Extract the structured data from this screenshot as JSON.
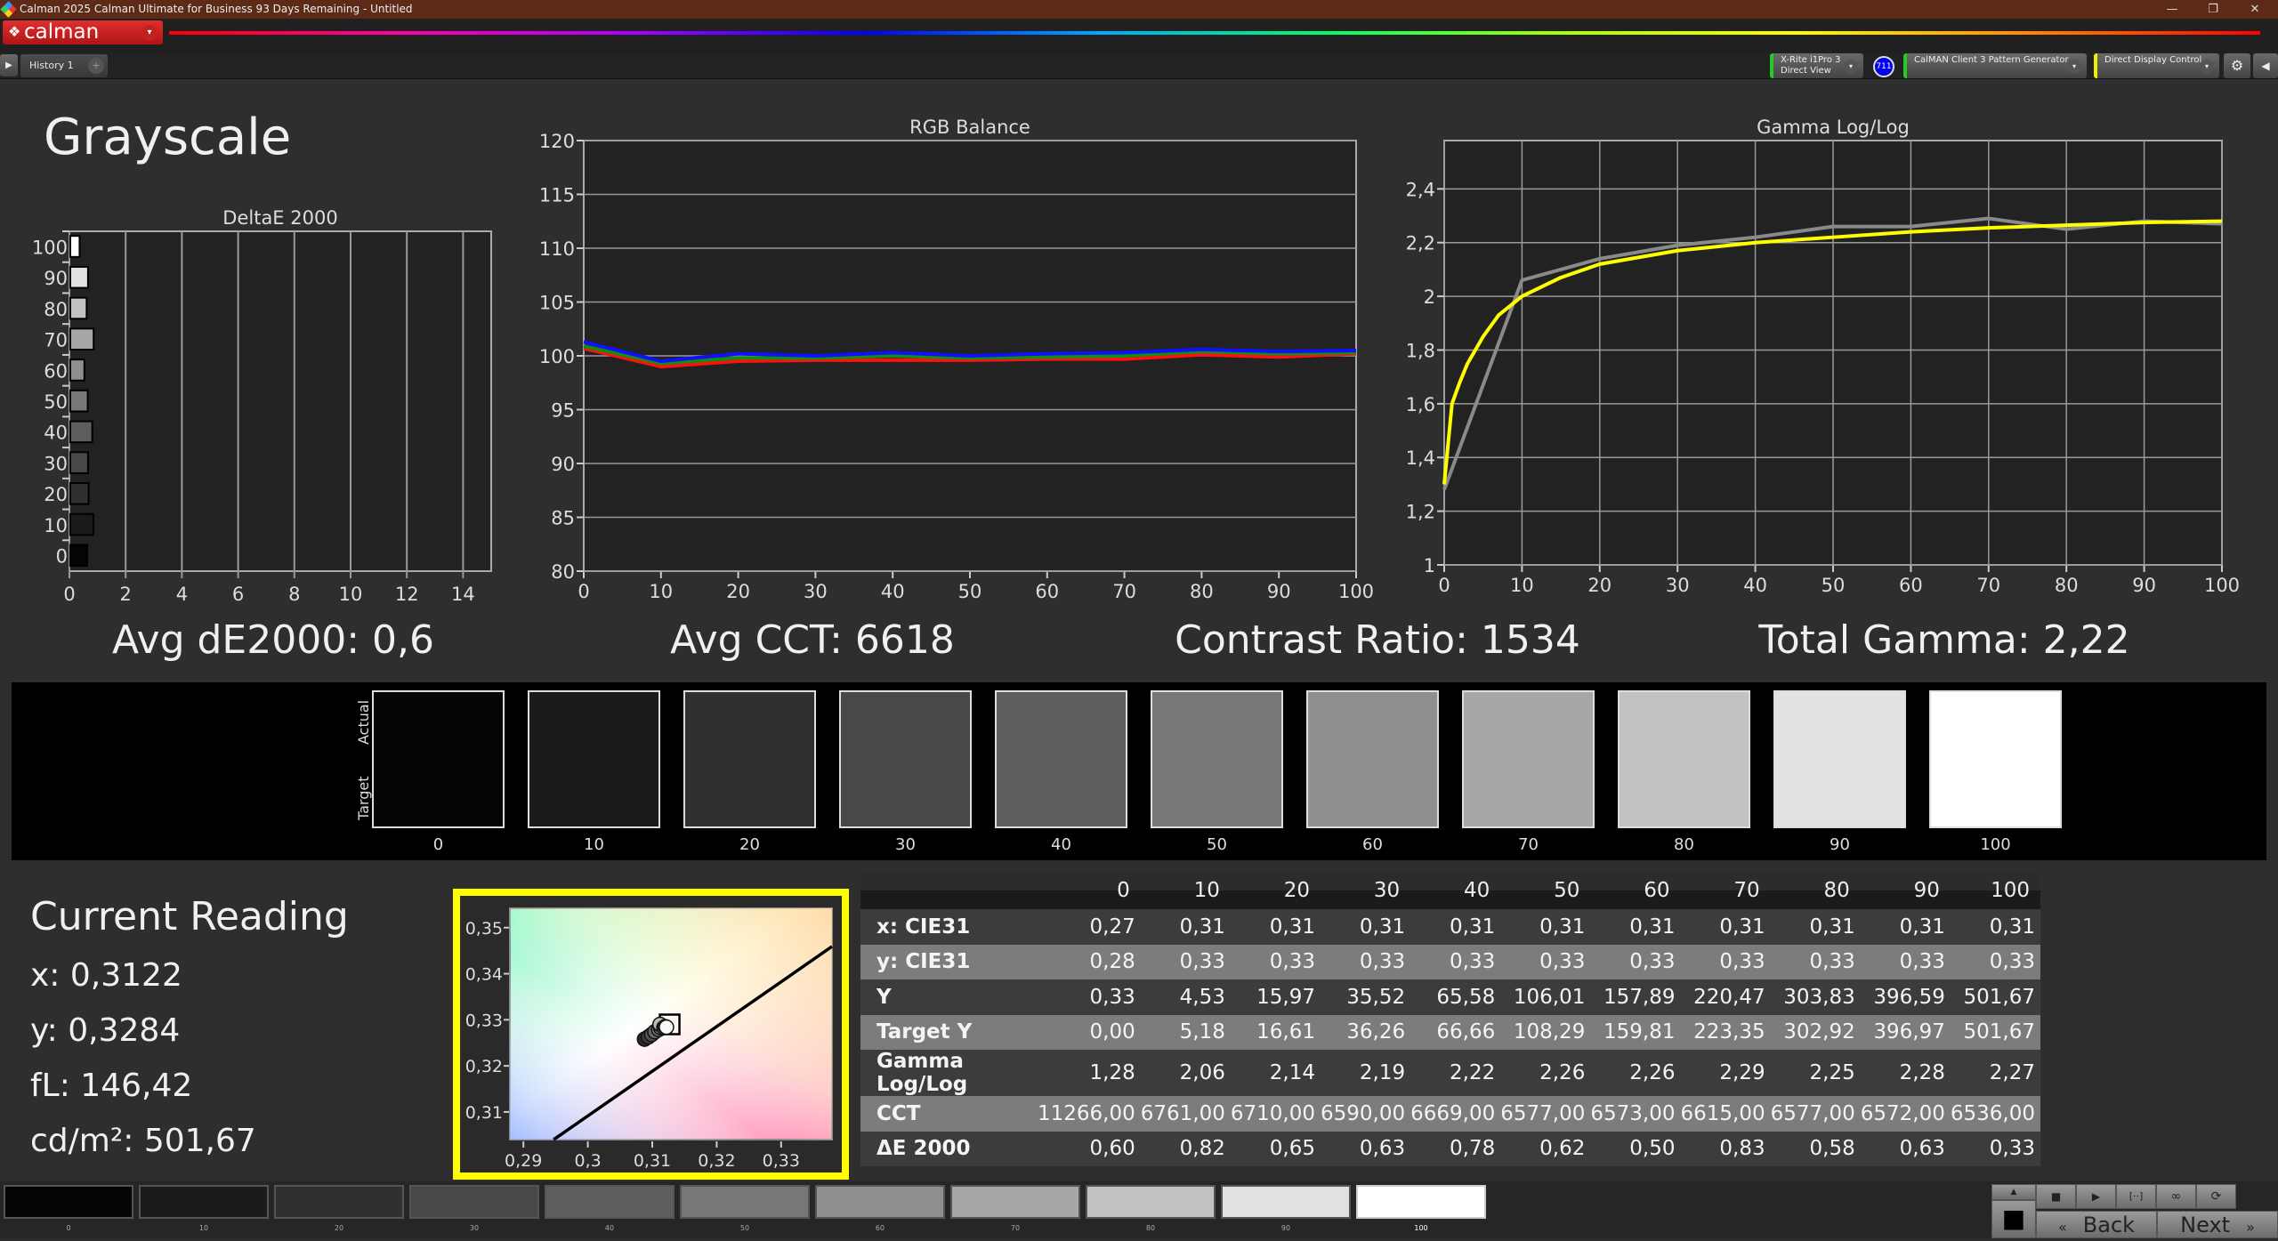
{
  "window": {
    "title": "Calman 2025 Calman Ultimate for Business 93 Days Remaining  - Untitled",
    "minimize": "—",
    "restore": "❐",
    "close": "✕"
  },
  "app": {
    "logo_text": "calman",
    "menu_arrow": "▾"
  },
  "toolbar": {
    "play": "▶",
    "history_tab": "History 1",
    "add_tab": "+",
    "meter": {
      "line1": "X-Rite i1Pro 3",
      "line2": "Direct View",
      "accent": "#22cc22"
    },
    "meter_badge": "711",
    "pattern_gen": {
      "label": "CalMAN Client 3 Pattern Generator",
      "accent": "#22cc22"
    },
    "display": {
      "label": "Direct Display Control",
      "accent": "#eeee00"
    },
    "settings": "⚙",
    "collapse": "◀",
    "dropdown": "▾"
  },
  "page": {
    "title": "Grayscale"
  },
  "stats": {
    "avg_de": "Avg dE2000: 0,6",
    "avg_cct": "Avg CCT: 6618",
    "contrast": "Contrast Ratio: 1534",
    "total_gamma": "Total Gamma: 2,22"
  },
  "chart_data": [
    {
      "id": "deltae",
      "type": "bar",
      "orientation": "horizontal",
      "title": "DeltaE 2000",
      "categories": [
        "0",
        "10",
        "20",
        "30",
        "40",
        "50",
        "60",
        "70",
        "80",
        "90",
        "100"
      ],
      "values": [
        0.6,
        0.82,
        0.65,
        0.63,
        0.78,
        0.62,
        0.5,
        0.83,
        0.58,
        0.63,
        0.33
      ],
      "xlim": [
        0,
        15
      ],
      "xticks": [
        0,
        2,
        4,
        6,
        8,
        10,
        12,
        14
      ],
      "grid": true
    },
    {
      "id": "rgb",
      "type": "line",
      "title": "RGB Balance",
      "x": [
        0,
        10,
        20,
        30,
        40,
        50,
        60,
        70,
        80,
        90,
        100
      ],
      "series": [
        {
          "color": "#ff1010",
          "values": [
            100.7,
            99.0,
            99.5,
            99.6,
            99.6,
            99.6,
            99.7,
            99.7,
            100.1,
            99.9,
            100.2
          ]
        },
        {
          "color": "#109010",
          "values": [
            100.9,
            99.3,
            99.8,
            99.8,
            100.0,
            99.8,
            99.9,
            100.0,
            100.4,
            100.2,
            100.3
          ]
        },
        {
          "color": "#1010ff",
          "values": [
            101.3,
            99.5,
            100.2,
            100.0,
            100.3,
            100.0,
            100.2,
            100.3,
            100.6,
            100.4,
            100.5
          ]
        }
      ],
      "xlim": [
        0,
        100
      ],
      "ylim": [
        80,
        120
      ],
      "xticks": [
        0,
        10,
        20,
        30,
        40,
        50,
        60,
        70,
        80,
        90,
        100
      ],
      "yticks": [
        80,
        85,
        90,
        95,
        100,
        105,
        110,
        115,
        120
      ],
      "reference": 100
    },
    {
      "id": "gamma",
      "type": "line",
      "title": "Gamma Log/Log",
      "series": [
        {
          "role": "target",
          "color": "#ffff00",
          "x": [
            0,
            1,
            2,
            3,
            5,
            7,
            10,
            15,
            20,
            30,
            40,
            50,
            60,
            70,
            80,
            90,
            100
          ],
          "values": [
            1.3,
            1.6,
            1.68,
            1.75,
            1.85,
            1.93,
            2.0,
            2.07,
            2.12,
            2.17,
            2.2,
            2.22,
            2.24,
            2.255,
            2.265,
            2.275,
            2.28
          ]
        },
        {
          "role": "measured",
          "color": "#8a8a8a",
          "x": [
            0,
            10,
            20,
            30,
            40,
            50,
            60,
            70,
            80,
            90,
            100
          ],
          "values": [
            1.28,
            2.06,
            2.14,
            2.19,
            2.22,
            2.26,
            2.26,
            2.29,
            2.25,
            2.28,
            2.27
          ]
        }
      ],
      "xlim": [
        0,
        100
      ],
      "ylim": [
        1,
        2.58
      ],
      "xticks": [
        0,
        10,
        20,
        30,
        40,
        50,
        60,
        70,
        80,
        90,
        100
      ],
      "yticks": [
        1,
        1.2,
        1.4,
        1.6,
        1.8,
        2,
        2.2,
        2.4
      ],
      "ytick_labels": [
        "1",
        "1,2",
        "1,4",
        "1,6",
        "1,8",
        "2",
        "2,2",
        "2,4"
      ]
    },
    {
      "id": "cie",
      "type": "scatter",
      "xlim": [
        0.2879,
        0.3379
      ],
      "ylim": [
        0.304,
        0.3542
      ],
      "xticks": [
        0.29,
        0.3,
        0.31,
        0.32,
        0.33
      ],
      "xtick_labels": [
        "0,29",
        "0,3",
        "0,31",
        "0,32",
        "0,33"
      ],
      "yticks": [
        0.31,
        0.32,
        0.33,
        0.34,
        0.35
      ],
      "ytick_labels": [
        "0,31",
        "0,32",
        "0,33",
        "0,34",
        "0,35"
      ],
      "target": {
        "x": 0.3127,
        "y": 0.329
      },
      "points": [
        {
          "x": 0.3088,
          "y": 0.3258
        },
        {
          "x": 0.3094,
          "y": 0.3263
        },
        {
          "x": 0.3099,
          "y": 0.3268
        },
        {
          "x": 0.3104,
          "y": 0.3274
        },
        {
          "x": 0.311,
          "y": 0.3279
        },
        {
          "x": 0.3113,
          "y": 0.3283
        },
        {
          "x": 0.3116,
          "y": 0.3286
        },
        {
          "x": 0.3112,
          "y": 0.329
        },
        {
          "x": 0.3118,
          "y": 0.3283
        },
        {
          "x": 0.312,
          "y": 0.3285
        },
        {
          "x": 0.3122,
          "y": 0.3284
        }
      ],
      "locus": [
        {
          "x": 0.2947,
          "y": 0.304
        },
        {
          "x": 0.3379,
          "y": 0.3459
        }
      ]
    }
  ],
  "swatches": {
    "actual_label": "Actual",
    "target_label": "Target",
    "items": [
      {
        "label": "0",
        "color": "#050505"
      },
      {
        "label": "10",
        "color": "#1b1b1b"
      },
      {
        "label": "20",
        "color": "#303030"
      },
      {
        "label": "30",
        "color": "#484848"
      },
      {
        "label": "40",
        "color": "#5e5e5e"
      },
      {
        "label": "50",
        "color": "#777777"
      },
      {
        "label": "60",
        "color": "#8f8f8f"
      },
      {
        "label": "70",
        "color": "#a7a7a7"
      },
      {
        "label": "80",
        "color": "#c2c2c2"
      },
      {
        "label": "90",
        "color": "#e2e2e2"
      },
      {
        "label": "100",
        "color": "#ffffff"
      }
    ]
  },
  "current": {
    "title": "Current Reading",
    "x": "x: 0,3122",
    "y": "y: 0,3284",
    "fl": "fL: 146,42",
    "cdm2": "cd/m²: 501,67"
  },
  "table": {
    "columns": [
      "0",
      "10",
      "20",
      "30",
      "40",
      "50",
      "60",
      "70",
      "80",
      "90",
      "100"
    ],
    "rows": [
      {
        "label": "x: CIE31",
        "values": [
          "0,27",
          "0,31",
          "0,31",
          "0,31",
          "0,31",
          "0,31",
          "0,31",
          "0,31",
          "0,31",
          "0,31",
          "0,31"
        ]
      },
      {
        "label": "y: CIE31",
        "values": [
          "0,28",
          "0,33",
          "0,33",
          "0,33",
          "0,33",
          "0,33",
          "0,33",
          "0,33",
          "0,33",
          "0,33",
          "0,33"
        ]
      },
      {
        "label": "Y",
        "values": [
          "0,33",
          "4,53",
          "15,97",
          "35,52",
          "65,58",
          "106,01",
          "157,89",
          "220,47",
          "303,83",
          "396,59",
          "501,67"
        ]
      },
      {
        "label": "Target Y",
        "values": [
          "0,00",
          "5,18",
          "16,61",
          "36,26",
          "66,66",
          "108,29",
          "159,81",
          "223,35",
          "302,92",
          "396,97",
          "501,67"
        ]
      },
      {
        "label": "Gamma Log/Log",
        "values": [
          "1,28",
          "2,06",
          "2,14",
          "2,19",
          "2,22",
          "2,26",
          "2,26",
          "2,29",
          "2,25",
          "2,28",
          "2,27"
        ]
      },
      {
        "label": "CCT",
        "values": [
          "11266,00",
          "6761,00",
          "6710,00",
          "6590,00",
          "6669,00",
          "6577,00",
          "6573,00",
          "6615,00",
          "6577,00",
          "6572,00",
          "6536,00"
        ]
      },
      {
        "label": "ΔE 2000",
        "values": [
          "0,60",
          "0,82",
          "0,65",
          "0,63",
          "0,78",
          "0,62",
          "0,50",
          "0,83",
          "0,58",
          "0,63",
          "0,33"
        ]
      }
    ]
  },
  "bottom": {
    "selected": "100"
  },
  "nav": {
    "up": "▲",
    "stop_big": "■",
    "stop": "■",
    "play": "▶",
    "range": "[··]",
    "loop": "∞",
    "refresh": "⟳",
    "back": "Back",
    "next": "Next",
    "back_icon": "«",
    "next_icon": "»"
  }
}
